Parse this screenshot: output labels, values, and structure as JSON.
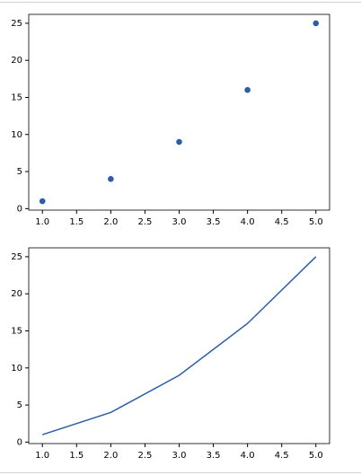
{
  "chart_data": [
    {
      "type": "scatter",
      "color": "#2b5ea7",
      "x": [
        1,
        2,
        3,
        4,
        5
      ],
      "values": [
        1,
        4,
        9,
        16,
        25
      ],
      "xlim": [
        0.8,
        5.2
      ],
      "ylim": [
        -0.2,
        26.2
      ],
      "xticks": [
        {
          "value": 1,
          "label": "1.0"
        },
        {
          "value": 1.5,
          "label": "1.5"
        },
        {
          "value": 2,
          "label": "2.0"
        },
        {
          "value": 2.5,
          "label": "2.5"
        },
        {
          "value": 3,
          "label": "3.0"
        },
        {
          "value": 3.5,
          "label": "3.5"
        },
        {
          "value": 4,
          "label": "4.0"
        },
        {
          "value": 4.5,
          "label": "4.5"
        },
        {
          "value": 5,
          "label": "5.0"
        }
      ],
      "yticks": [
        0,
        5,
        10,
        15,
        20,
        25
      ]
    },
    {
      "type": "line",
      "color": "#2b5ea7",
      "x": [
        1,
        2,
        3,
        4,
        5
      ],
      "values": [
        1,
        4,
        9,
        16,
        25
      ],
      "xlim": [
        0.8,
        5.2
      ],
      "ylim": [
        -0.2,
        26.2
      ],
      "xticks": [
        {
          "value": 1,
          "label": "1.0"
        },
        {
          "value": 1.5,
          "label": "1.5"
        },
        {
          "value": 2,
          "label": "2.0"
        },
        {
          "value": 2.5,
          "label": "2.5"
        },
        {
          "value": 3,
          "label": "3.0"
        },
        {
          "value": 3.5,
          "label": "3.5"
        },
        {
          "value": 4,
          "label": "4.0"
        },
        {
          "value": 4.5,
          "label": "4.5"
        },
        {
          "value": 5,
          "label": "5.0"
        }
      ],
      "yticks": [
        0,
        5,
        10,
        15,
        20,
        25
      ]
    }
  ]
}
